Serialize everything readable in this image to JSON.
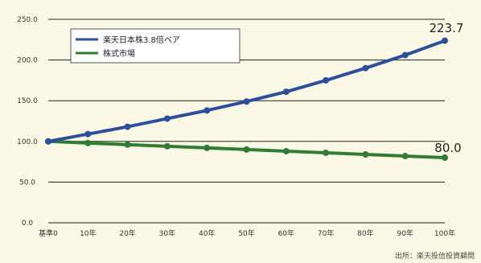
{
  "chart_data": {
    "type": "line",
    "categories": [
      "基準0",
      "10年",
      "20年",
      "30年",
      "40年",
      "50年",
      "60年",
      "70年",
      "80年",
      "90年",
      "100年"
    ],
    "series": [
      {
        "name": "楽天日本株3.8倍ベア",
        "color": "#2b4f9e",
        "values": [
          100,
          109,
          118,
          128,
          138,
          149,
          161,
          175,
          190,
          206,
          223.7
        ]
      },
      {
        "name": "株式市場",
        "color": "#2f7d32",
        "values": [
          100,
          98,
          96,
          94,
          92,
          90,
          88,
          86,
          84,
          82,
          80.0
        ]
      }
    ],
    "y_ticks": [
      "0.0",
      "50.0",
      "100.0",
      "150.0",
      "200.0",
      "250.0"
    ],
    "ylim": [
      0,
      250
    ],
    "grid": true,
    "legend_position": "top-left",
    "end_labels": [
      "223.7",
      "80.0"
    ],
    "title": "",
    "xlabel": "",
    "ylabel": ""
  },
  "source": "出所：楽天投信投資顧問"
}
